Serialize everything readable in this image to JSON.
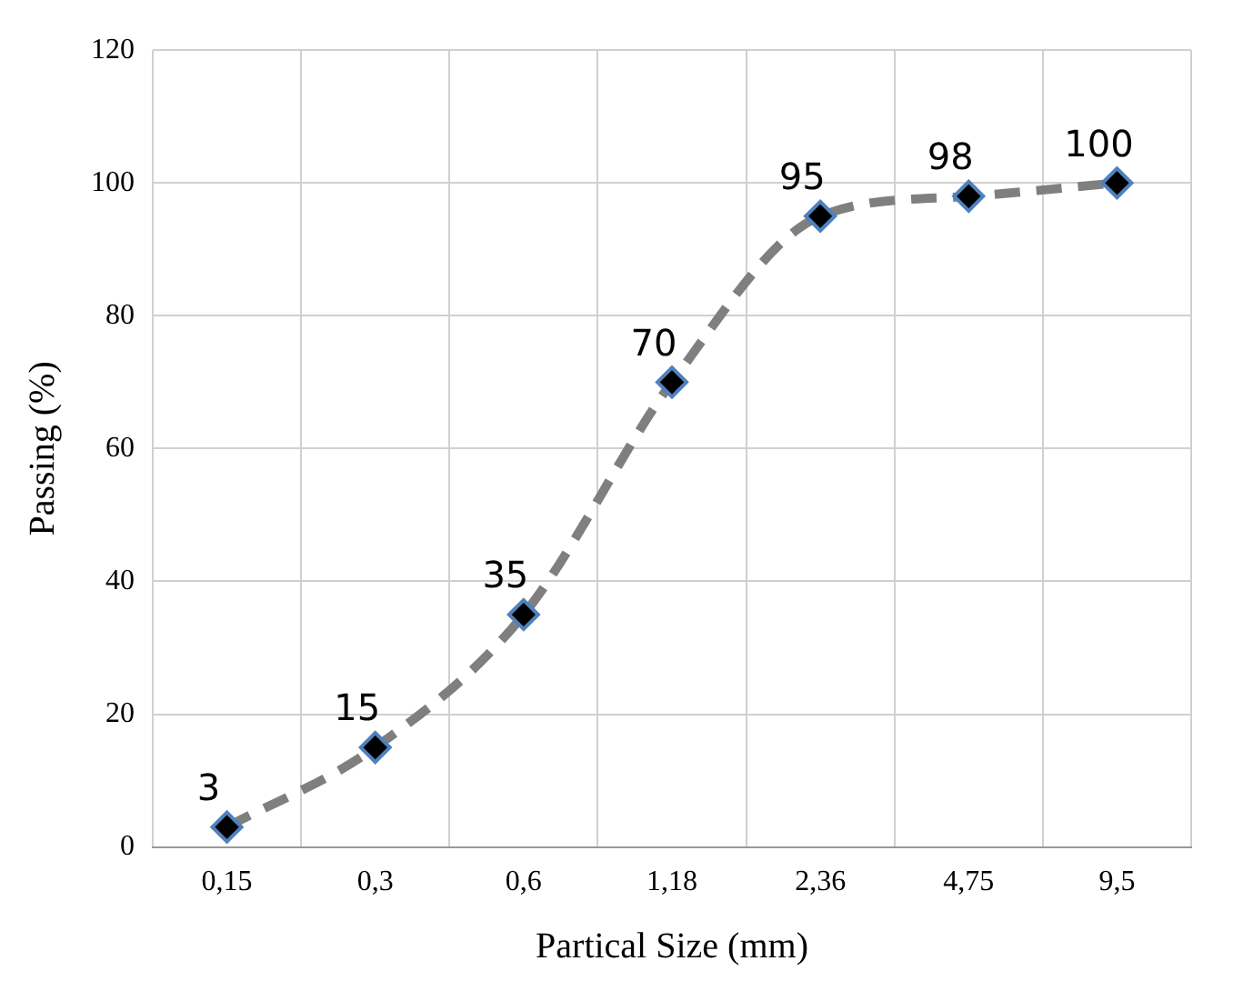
{
  "chart_data": {
    "type": "line",
    "xlabel": "Partical Size (mm)",
    "ylabel": "Passing (%)",
    "categories": [
      "0,15",
      "0,3",
      "0,6",
      "1,18",
      "2,36",
      "4,75",
      "9,5"
    ],
    "series": [
      {
        "color": "#7f7f7f",
        "values": [
          3,
          15,
          35,
          70,
          95,
          98,
          100
        ]
      }
    ],
    "ylim": [
      0,
      120
    ],
    "yticks": [
      0,
      20,
      40,
      60,
      80,
      100,
      120
    ],
    "grid": true,
    "marker": "diamond",
    "line_style": "dashed",
    "data_labels": true
  }
}
